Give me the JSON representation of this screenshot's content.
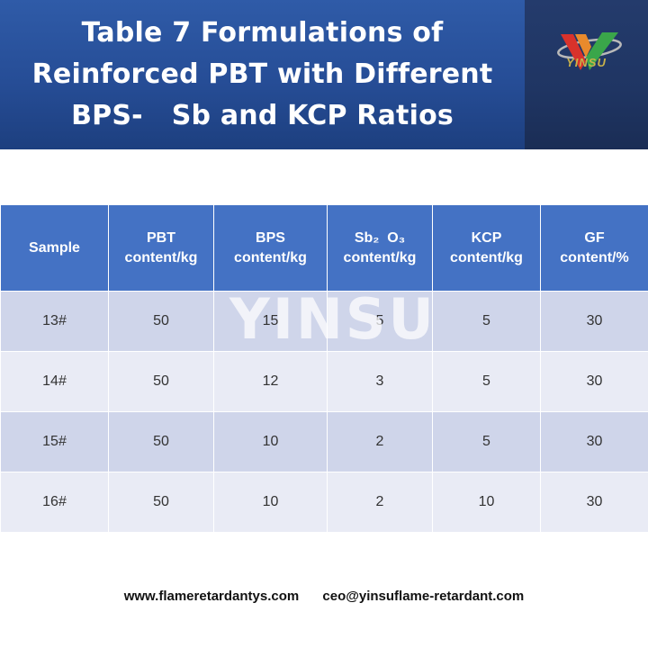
{
  "header": {
    "title_lines": [
      "Table 7 Formulations of",
      "Reinforced PBT with Different",
      "BPS-   Sb and KCP Ratios"
    ],
    "logo_text": "YINSU",
    "logo_colors": {
      "v_green": "#3aa64a",
      "v_red": "#d9322b",
      "ring_gray": "#b9b9b9"
    }
  },
  "table": {
    "headers": [
      [
        "Sample"
      ],
      [
        "PBT",
        "content/kg"
      ],
      [
        "BPS",
        "content/kg"
      ],
      [
        "Sb₂  O₃",
        "content/kg"
      ],
      [
        "KCP",
        "content/kg"
      ],
      [
        "GF",
        "content/%"
      ]
    ],
    "rows": [
      [
        "13#",
        "50",
        "15",
        "5",
        "5",
        "30"
      ],
      [
        "14#",
        "50",
        "12",
        "3",
        "5",
        "30"
      ],
      [
        "15#",
        "50",
        "10",
        "2",
        "5",
        "30"
      ],
      [
        "16#",
        "50",
        "10",
        "2",
        "10",
        "30"
      ]
    ],
    "colors": {
      "header_bg": "#4472c4",
      "row_odd": "#cfd5ea",
      "row_even": "#e9ebf5"
    }
  },
  "watermark": "YINSU",
  "footer": {
    "website": "www.flameretardantys.com",
    "email": "ceo@yinsuflame-retardant.com"
  }
}
